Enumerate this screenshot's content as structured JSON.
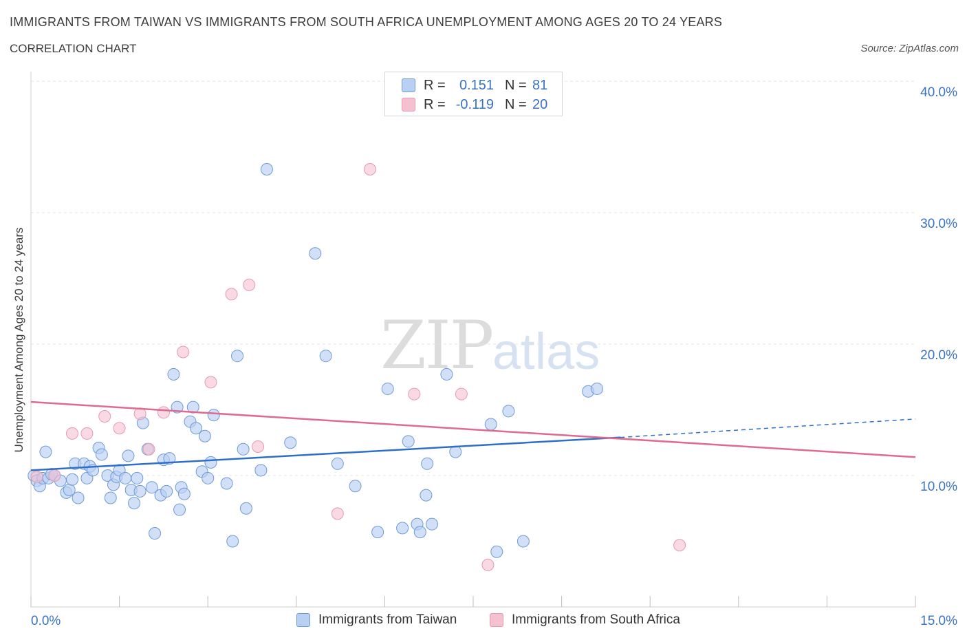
{
  "title": "IMMIGRANTS FROM TAIWAN VS IMMIGRANTS FROM SOUTH AFRICA UNEMPLOYMENT AMONG AGES 20 TO 24 YEARS",
  "subtitle": "CORRELATION CHART",
  "source": "Source: ZipAtlas.com",
  "watermark": {
    "zip": "ZIP",
    "atlas": "atlas"
  },
  "legend": {
    "rows": [
      {
        "r_label": "R =",
        "r_value": "0.151",
        "n_label": "N =",
        "n_value": "81"
      },
      {
        "r_label": "R =",
        "r_value": "-0.119",
        "n_label": "N =",
        "n_value": "20"
      }
    ]
  },
  "bottom_legend": {
    "taiwan": "Immigrants from Taiwan",
    "south_africa": "Immigrants from South Africa"
  },
  "colors": {
    "taiwan_fill": "#b8d0f2",
    "taiwan_stroke": "#6f9ad6",
    "taiwan_line": "#2e6fcc",
    "sa_fill": "#f5c0d0",
    "sa_stroke": "#e69ab2",
    "sa_line": "#e0698f",
    "tick_text": "#3a72c4",
    "grid": "#e3e3e3"
  },
  "chart_data": {
    "type": "scatter",
    "title": "IMMIGRANTS FROM TAIWAN VS IMMIGRANTS FROM SOUTH AFRICA UNEMPLOYMENT AMONG AGES 20 TO 24 YEARS",
    "xlabel": "",
    "ylabel": "Unemployment Among Ages 20 to 24 years",
    "xlim": [
      0,
      15
    ],
    "ylim": [
      0,
      40
    ],
    "x_tick_labels": [
      "0.0%",
      "15.0%"
    ],
    "y_ticks": [
      10,
      20,
      30,
      40
    ],
    "y_tick_labels": [
      "10.0%",
      "20.0%",
      "30.0%",
      "40.0%"
    ],
    "grid": true,
    "legend_position": "top-center",
    "series": [
      {
        "name": "Immigrants from Taiwan",
        "R": 0.151,
        "N": 81,
        "trend": {
          "x": [
            0,
            10
          ],
          "y": [
            10.4,
            12.9
          ],
          "dashed_to": [
            15,
            14.3
          ]
        },
        "points": [
          [
            0.05,
            10.0
          ],
          [
            0.1,
            9.6
          ],
          [
            0.15,
            9.2
          ],
          [
            0.2,
            9.8
          ],
          [
            0.25,
            11.8
          ],
          [
            0.3,
            9.8
          ],
          [
            0.35,
            10.1
          ],
          [
            0.4,
            10.0
          ],
          [
            0.5,
            9.6
          ],
          [
            0.6,
            8.7
          ],
          [
            0.65,
            8.9
          ],
          [
            0.7,
            9.7
          ],
          [
            0.75,
            10.9
          ],
          [
            0.8,
            8.3
          ],
          [
            0.9,
            10.9
          ],
          [
            0.95,
            9.8
          ],
          [
            1.0,
            10.7
          ],
          [
            1.05,
            10.4
          ],
          [
            1.15,
            12.1
          ],
          [
            1.2,
            11.6
          ],
          [
            1.3,
            10.0
          ],
          [
            1.35,
            8.3
          ],
          [
            1.4,
            9.3
          ],
          [
            1.45,
            9.9
          ],
          [
            1.5,
            10.4
          ],
          [
            1.6,
            9.8
          ],
          [
            1.65,
            11.5
          ],
          [
            1.7,
            8.9
          ],
          [
            1.75,
            7.9
          ],
          [
            1.8,
            9.8
          ],
          [
            1.85,
            8.8
          ],
          [
            1.9,
            14.0
          ],
          [
            1.98,
            12.0
          ],
          [
            2.05,
            9.1
          ],
          [
            2.1,
            5.6
          ],
          [
            2.2,
            8.5
          ],
          [
            2.25,
            11.2
          ],
          [
            2.3,
            8.8
          ],
          [
            2.35,
            11.3
          ],
          [
            2.42,
            17.7
          ],
          [
            2.48,
            15.2
          ],
          [
            2.52,
            7.4
          ],
          [
            2.55,
            9.1
          ],
          [
            2.6,
            8.6
          ],
          [
            2.7,
            14.1
          ],
          [
            2.75,
            15.2
          ],
          [
            2.8,
            13.6
          ],
          [
            2.9,
            10.3
          ],
          [
            2.95,
            13.0
          ],
          [
            3.0,
            9.8
          ],
          [
            3.05,
            11.0
          ],
          [
            3.1,
            14.6
          ],
          [
            3.32,
            9.4
          ],
          [
            3.42,
            5.0
          ],
          [
            3.5,
            19.1
          ],
          [
            3.6,
            12.0
          ],
          [
            3.65,
            7.5
          ],
          [
            3.9,
            10.4
          ],
          [
            4.0,
            33.3
          ],
          [
            4.4,
            12.5
          ],
          [
            4.82,
            26.9
          ],
          [
            5.0,
            19.1
          ],
          [
            5.2,
            10.9
          ],
          [
            5.5,
            9.2
          ],
          [
            5.88,
            5.7
          ],
          [
            6.05,
            16.6
          ],
          [
            6.3,
            6.0
          ],
          [
            6.4,
            12.6
          ],
          [
            6.55,
            6.3
          ],
          [
            6.6,
            5.7
          ],
          [
            6.7,
            8.5
          ],
          [
            6.72,
            10.9
          ],
          [
            6.8,
            6.3
          ],
          [
            7.05,
            17.7
          ],
          [
            7.2,
            11.8
          ],
          [
            7.8,
            13.9
          ],
          [
            7.9,
            4.2
          ],
          [
            8.1,
            14.9
          ],
          [
            8.35,
            5.0
          ],
          [
            9.45,
            16.4
          ],
          [
            9.6,
            16.6
          ]
        ]
      },
      {
        "name": "Immigrants from South Africa",
        "R": -0.119,
        "N": 20,
        "trend": {
          "x": [
            0,
            15
          ],
          "y": [
            15.6,
            11.4
          ]
        },
        "points": [
          [
            0.1,
            9.9
          ],
          [
            0.4,
            10.0
          ],
          [
            0.7,
            13.2
          ],
          [
            0.95,
            13.2
          ],
          [
            1.25,
            14.5
          ],
          [
            1.5,
            13.6
          ],
          [
            1.85,
            14.7
          ],
          [
            2.0,
            12.0
          ],
          [
            2.25,
            14.8
          ],
          [
            2.58,
            19.4
          ],
          [
            3.05,
            17.1
          ],
          [
            3.4,
            23.8
          ],
          [
            3.7,
            24.5
          ],
          [
            3.85,
            12.2
          ],
          [
            5.2,
            7.1
          ],
          [
            5.75,
            33.3
          ],
          [
            6.5,
            16.2
          ],
          [
            7.3,
            16.2
          ],
          [
            7.75,
            3.2
          ],
          [
            11.0,
            4.7
          ]
        ]
      }
    ]
  }
}
